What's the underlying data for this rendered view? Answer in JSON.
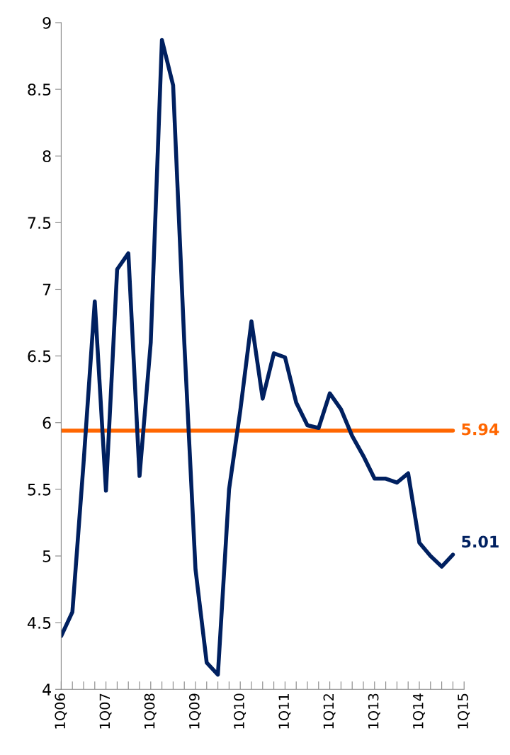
{
  "chart_data": {
    "type": "line",
    "categories": [
      "1Q06",
      null,
      null,
      null,
      "1Q07",
      null,
      null,
      null,
      "1Q08",
      null,
      null,
      null,
      "1Q09",
      null,
      null,
      null,
      "1Q10",
      null,
      null,
      null,
      "1Q11",
      null,
      null,
      null,
      "1Q12",
      null,
      null,
      null,
      "1Q13",
      null,
      null,
      null,
      "1Q14",
      null,
      null,
      null,
      "1Q15"
    ],
    "series": [
      {
        "color": "#002060",
        "values": [
          4.4,
          4.58,
          5.7,
          6.91,
          5.49,
          7.15,
          7.27,
          5.6,
          6.6,
          8.87,
          8.53,
          6.6,
          4.9,
          4.2,
          4.11,
          5.5,
          6.09,
          6.76,
          6.18,
          6.52,
          6.49,
          6.15,
          5.98,
          5.96,
          6.22,
          6.1,
          5.9,
          5.75,
          5.58,
          5.58,
          5.55,
          5.62,
          5.1,
          5.0,
          4.92,
          5.01,
          null
        ],
        "value_labels": [
          null,
          null,
          null,
          null,
          null,
          null,
          null,
          null,
          null,
          null,
          null,
          null,
          null,
          null,
          null,
          null,
          null,
          null,
          null,
          null,
          null,
          null,
          null,
          null,
          null,
          null,
          null,
          null,
          null,
          null,
          null,
          null,
          null,
          null,
          null,
          "5.01",
          null
        ]
      }
    ],
    "ylim": [
      4,
      9
    ],
    "yticks": [
      4,
      4.5,
      5,
      5.5,
      6,
      6.5,
      7,
      7.5,
      8,
      8.5,
      9
    ],
    "ref_lines": [
      {
        "axis": "y",
        "value": 5.94,
        "label": "5.94",
        "color": "#ff6600"
      }
    ],
    "grid": false,
    "legend": false,
    "marker": "none",
    "line_style": "solid"
  }
}
